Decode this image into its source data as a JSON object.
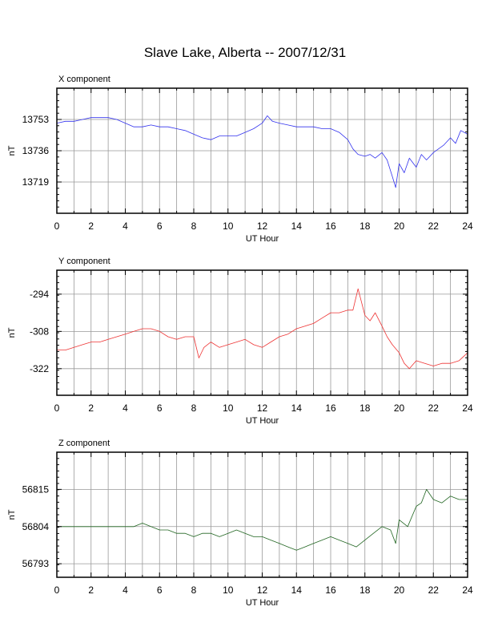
{
  "title": "Slave Lake, Alberta -- 2007/12/31",
  "chart_data": [
    {
      "type": "line",
      "title": "X component",
      "xlabel": "UT Hour",
      "ylabel": "nT",
      "xlim": [
        0,
        24
      ],
      "ylim": [
        13702,
        13770
      ],
      "xticks": [
        0,
        2,
        4,
        6,
        8,
        10,
        12,
        14,
        16,
        18,
        20,
        22,
        24
      ],
      "yticks": [
        13719,
        13736,
        13753
      ],
      "grid": true,
      "color": "#3333ee",
      "series": [
        {
          "x": [
            0,
            0.5,
            1,
            1.5,
            2,
            2.5,
            3,
            3.5,
            4,
            4.5,
            5,
            5.5,
            6,
            6.5,
            7,
            7.5,
            8,
            8.5,
            9,
            9.5,
            10,
            10.5,
            11,
            11.5,
            12,
            12.3,
            12.6,
            13,
            13.5,
            14,
            14.5,
            15,
            15.5,
            16,
            16.5,
            17,
            17.3,
            17.6,
            18,
            18.3,
            18.6,
            19,
            19.3,
            19.6,
            19.8,
            20,
            20.3,
            20.6,
            21,
            21.3,
            21.6,
            22,
            22.3,
            22.6,
            23,
            23.3,
            23.6,
            24
          ],
          "y": [
            13751,
            13752,
            13752,
            13753,
            13754,
            13754,
            13754,
            13753,
            13751,
            13749,
            13749,
            13750,
            13749,
            13749,
            13748,
            13747,
            13745,
            13743,
            13742,
            13744,
            13744,
            13744,
            13746,
            13748,
            13751,
            13755,
            13752,
            13751,
            13750,
            13749,
            13749,
            13749,
            13748,
            13748,
            13746,
            13742,
            13737,
            13734,
            13733,
            13734,
            13732,
            13735,
            13731,
            13722,
            13716,
            13729,
            13724,
            13732,
            13727,
            13734,
            13731,
            13735,
            13737,
            13739,
            13743,
            13740,
            13747,
            13745
          ]
        }
      ]
    },
    {
      "type": "line",
      "title": "Y component",
      "xlabel": "UT Hour",
      "ylabel": "nT",
      "xlim": [
        0,
        24
      ],
      "ylim": [
        -332,
        -285
      ],
      "xticks": [
        0,
        2,
        4,
        6,
        8,
        10,
        12,
        14,
        16,
        18,
        20,
        22,
        24
      ],
      "yticks": [
        -294,
        -308,
        -322
      ],
      "grid": true,
      "color": "#ee3333",
      "series": [
        {
          "x": [
            0,
            0.5,
            1,
            1.5,
            2,
            2.5,
            3,
            3.5,
            4,
            4.5,
            5,
            5.5,
            6,
            6.5,
            7,
            7.5,
            8,
            8.3,
            8.6,
            9,
            9.5,
            10,
            10.5,
            11,
            11.5,
            12,
            12.5,
            13,
            13.5,
            14,
            14.5,
            15,
            15.5,
            16,
            16.5,
            17,
            17.3,
            17.6,
            18,
            18.3,
            18.6,
            19,
            19.3,
            19.6,
            20,
            20.3,
            20.6,
            21,
            21.5,
            22,
            22.5,
            23,
            23.5,
            24
          ],
          "y": [
            -315,
            -315,
            -314,
            -313,
            -312,
            -312,
            -311,
            -310,
            -309,
            -308,
            -307,
            -307,
            -308,
            -310,
            -311,
            -310,
            -310,
            -318,
            -314,
            -312,
            -314,
            -313,
            -312,
            -311,
            -313,
            -314,
            -312,
            -310,
            -309,
            -307,
            -306,
            -305,
            -303,
            -301,
            -301,
            -300,
            -300,
            -292,
            -302,
            -304,
            -301,
            -306,
            -310,
            -313,
            -316,
            -320,
            -322,
            -319,
            -320,
            -321,
            -320,
            -320,
            -319,
            -316
          ]
        }
      ]
    },
    {
      "type": "line",
      "title": "Z component",
      "xlabel": "UT Hour",
      "ylabel": "nT",
      "xlim": [
        0,
        24
      ],
      "ylim": [
        56789,
        56826
      ],
      "xticks": [
        0,
        2,
        4,
        6,
        8,
        10,
        12,
        14,
        16,
        18,
        20,
        22,
        24
      ],
      "yticks": [
        56793,
        56804,
        56815
      ],
      "grid": true,
      "color": "#226622",
      "series": [
        {
          "x": [
            0,
            0.5,
            1,
            1.5,
            2,
            2.5,
            3,
            3.5,
            4,
            4.5,
            5,
            5.5,
            6,
            6.5,
            7,
            7.5,
            8,
            8.5,
            9,
            9.5,
            10,
            10.5,
            11,
            11.5,
            12,
            12.5,
            13,
            13.5,
            14,
            14.5,
            15,
            15.5,
            16,
            16.5,
            17,
            17.5,
            18,
            18.5,
            19,
            19.5,
            19.8,
            20,
            20.5,
            21,
            21.3,
            21.6,
            22,
            22.5,
            23,
            23.5,
            24
          ],
          "y": [
            56804,
            56804,
            56804,
            56804,
            56804,
            56804,
            56804,
            56804,
            56804,
            56804,
            56805,
            56804,
            56803,
            56803,
            56802,
            56802,
            56801,
            56802,
            56802,
            56801,
            56802,
            56803,
            56802,
            56801,
            56801,
            56800,
            56799,
            56798,
            56797,
            56798,
            56799,
            56800,
            56801,
            56800,
            56799,
            56798,
            56800,
            56802,
            56804,
            56803,
            56799,
            56806,
            56804,
            56810,
            56811,
            56815,
            56812,
            56811,
            56813,
            56812,
            56812
          ]
        }
      ]
    }
  ]
}
